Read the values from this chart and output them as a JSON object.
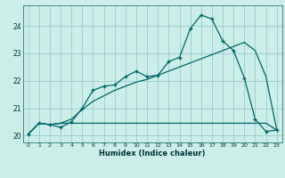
{
  "xlabel": "Humidex (Indice chaleur)",
  "bg_color": "#cceee8",
  "grid_color": "#99cccc",
  "line_color": "#006666",
  "xlim": [
    -0.5,
    23.5
  ],
  "ylim": [
    19.75,
    24.75
  ],
  "yticks": [
    20,
    21,
    22,
    23,
    24
  ],
  "xticks": [
    0,
    1,
    2,
    3,
    4,
    5,
    6,
    7,
    8,
    9,
    10,
    11,
    12,
    13,
    14,
    15,
    16,
    17,
    18,
    19,
    20,
    21,
    22,
    23
  ],
  "series1_x": [
    0,
    1,
    2,
    3,
    4,
    5,
    6,
    7,
    8,
    9,
    10,
    11,
    12,
    13,
    14,
    15,
    16,
    17,
    18,
    19,
    20,
    21,
    22,
    23
  ],
  "series1_y": [
    20.05,
    20.45,
    20.4,
    20.45,
    20.45,
    20.45,
    20.45,
    20.45,
    20.45,
    20.45,
    20.45,
    20.45,
    20.45,
    20.45,
    20.45,
    20.45,
    20.45,
    20.45,
    20.45,
    20.45,
    20.45,
    20.45,
    20.45,
    20.2
  ],
  "series2_x": [
    0,
    1,
    2,
    3,
    4,
    5,
    6,
    7,
    8,
    9,
    10,
    11,
    12,
    13,
    14,
    15,
    16,
    17,
    18,
    19,
    20,
    21,
    22,
    23
  ],
  "series2_y": [
    20.05,
    20.45,
    20.4,
    20.45,
    20.6,
    20.95,
    21.25,
    21.45,
    21.65,
    21.8,
    21.95,
    22.05,
    22.2,
    22.35,
    22.5,
    22.65,
    22.8,
    22.95,
    23.1,
    23.25,
    23.4,
    23.1,
    22.15,
    20.2
  ],
  "series3_x": [
    0,
    1,
    2,
    3,
    4,
    5,
    6,
    7,
    8,
    9,
    10,
    11,
    12,
    13,
    14,
    15,
    16,
    17,
    18,
    19,
    20,
    21,
    22,
    23
  ],
  "series3_y": [
    20.05,
    20.45,
    20.4,
    20.3,
    20.5,
    21.0,
    21.65,
    21.8,
    21.85,
    22.15,
    22.35,
    22.15,
    22.2,
    22.7,
    22.85,
    23.9,
    24.4,
    24.25,
    23.45,
    23.1,
    22.1,
    20.6,
    20.15,
    20.2
  ]
}
